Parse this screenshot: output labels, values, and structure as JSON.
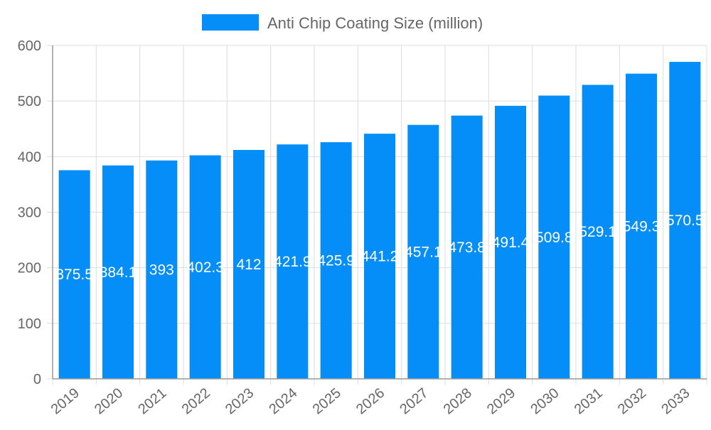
{
  "chart_data": {
    "type": "bar",
    "categories": [
      "2019",
      "2020",
      "2021",
      "2022",
      "2023",
      "2024",
      "2025",
      "2026",
      "2027",
      "2028",
      "2029",
      "2030",
      "2031",
      "2032",
      "2033"
    ],
    "series": [
      {
        "name": "Anti Chip Coating Size (million)",
        "values": [
          375.5,
          384.1,
          393,
          402.3,
          412,
          421.9,
          425.9,
          441.2,
          457.1,
          473.8,
          491.4,
          509.8,
          529.1,
          549.3,
          570.5
        ]
      }
    ],
    "ylim": [
      0,
      600
    ],
    "yticks": [
      0,
      100,
      200,
      300,
      400,
      500,
      600
    ],
    "grid": true,
    "legend": "top-center",
    "bar_color": "#058DF8",
    "data_labels": true
  }
}
